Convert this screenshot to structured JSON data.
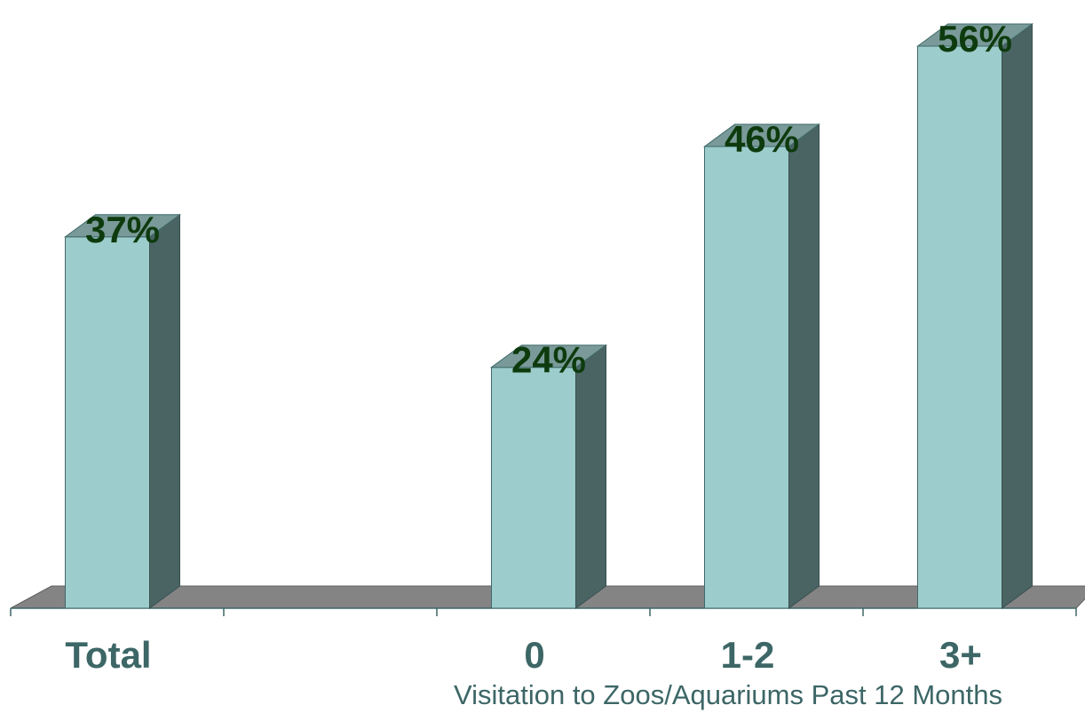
{
  "chart_data": {
    "type": "bar",
    "style": "3d",
    "categories": [
      "Total",
      "",
      "0",
      "1-2",
      "3+"
    ],
    "values": [
      37,
      null,
      24,
      46,
      56
    ],
    "value_labels": [
      "37%",
      "",
      "24%",
      "46%",
      "56%"
    ],
    "title": "",
    "xlabel": "Visitation to Zoos/Aquariums Past 12 Months",
    "ylabel": "",
    "ylim": [
      0,
      58
    ],
    "grid": false,
    "legend": "none",
    "colors": {
      "bar_front": "#9CCCCB",
      "bar_side": "#4A6464",
      "bar_top": "#7A9A99",
      "floor": "#848484",
      "value_label": "#0E3B0E",
      "category_label": "#3D6666",
      "axis_line": "#3D6666"
    }
  }
}
